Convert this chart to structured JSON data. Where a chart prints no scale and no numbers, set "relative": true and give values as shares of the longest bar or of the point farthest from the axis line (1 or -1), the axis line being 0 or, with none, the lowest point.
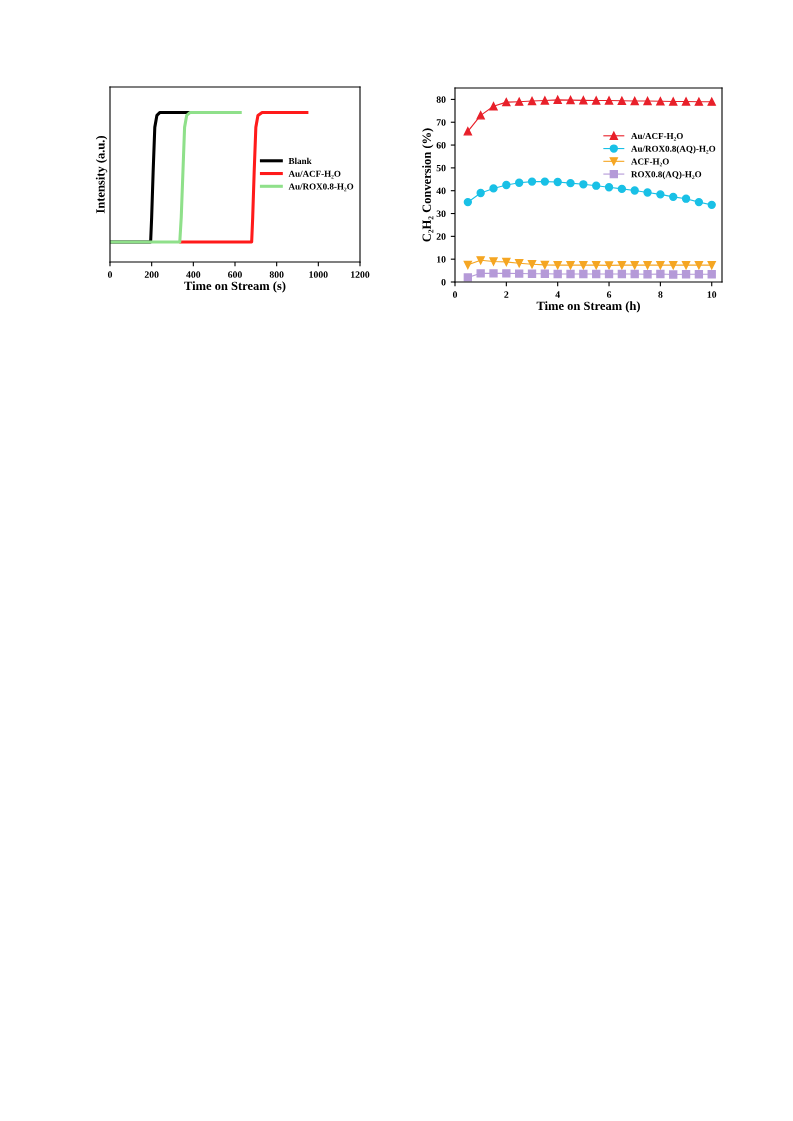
{
  "chart_data": [
    {
      "type": "line",
      "relative": true,
      "xlabel": "Time on Stream (s)",
      "ylabel": "Intensity (a.u.)",
      "xlim": [
        0,
        1200
      ],
      "xticks": [
        0,
        200,
        400,
        600,
        800,
        1000,
        1200
      ],
      "legend": "right",
      "grid": false,
      "marker": "none",
      "line_style": "solid",
      "series": [
        {
          "name": "Blank",
          "color": "#000000",
          "x": [
            0,
            195,
            200,
            207,
            215,
            225,
            240,
            390
          ],
          "values": [
            0.134,
            0.134,
            0.3,
            0.6,
            0.9,
            0.98,
            1,
            1
          ]
        },
        {
          "name": "Au/ACF-H₂O",
          "color": "#ff1a1a",
          "x": [
            340,
            680,
            685,
            692,
            700,
            710,
            730,
            945
          ],
          "values": [
            0.134,
            0.134,
            0.3,
            0.6,
            0.9,
            0.98,
            1,
            1
          ]
        },
        {
          "name": "Au/ROX0.8-H₂O",
          "color": "#8fe08a",
          "x": [
            0,
            335,
            342,
            350,
            358,
            368,
            385,
            625
          ],
          "values": [
            0.134,
            0.134,
            0.3,
            0.6,
            0.9,
            0.98,
            1,
            1
          ]
        }
      ]
    },
    {
      "type": "line",
      "xlabel": "Time on Stream (h)",
      "ylabel": "C₂H₂ Conversion (%)",
      "xlim": [
        0,
        10.4
      ],
      "xticks": [
        0,
        2,
        4,
        6,
        8,
        10
      ],
      "ylim": [
        0,
        85
      ],
      "yticks": [
        0,
        10,
        20,
        30,
        40,
        50,
        60,
        70,
        80
      ],
      "legend": "right",
      "grid": false,
      "line_style": "solid",
      "x": [
        0.5,
        1,
        1.5,
        2,
        2.5,
        3,
        3.5,
        4,
        4.5,
        5,
        5.5,
        6,
        6.5,
        7,
        7.5,
        8,
        8.5,
        9,
        9.5,
        10
      ],
      "series": [
        {
          "name": "Au/ACF-H₂O",
          "color": "#e8202a",
          "marker": "triangle",
          "values": [
            66,
            73,
            77,
            78.8,
            79,
            79.3,
            79.5,
            79.8,
            79.7,
            79.6,
            79.5,
            79.5,
            79.4,
            79.3,
            79.3,
            79.2,
            79.1,
            79.1,
            79,
            79
          ]
        },
        {
          "name": "Au/ROX0.8(AQ)-H₂O",
          "color": "#19c0e6",
          "marker": "circle",
          "values": [
            35,
            39,
            41,
            42.5,
            43.5,
            44,
            44,
            43.8,
            43.3,
            42.8,
            42.2,
            41.5,
            40.8,
            40.1,
            39.2,
            38.4,
            37.3,
            36.5,
            35,
            33.8
          ]
        },
        {
          "name": "ACF-H₂O",
          "color": "#f5a623",
          "marker": "triangle_down",
          "values": [
            7.5,
            9.5,
            9,
            8.8,
            8.2,
            7.8,
            7.5,
            7.4,
            7.4,
            7.4,
            7.4,
            7.3,
            7.4,
            7.4,
            7.4,
            7.4,
            7.4,
            7.4,
            7.4,
            7.4
          ]
        },
        {
          "name": "ROX0.8(AQ)-H₂O",
          "color": "#b59ad8",
          "marker": "square",
          "values": [
            2,
            3.8,
            3.8,
            3.8,
            3.7,
            3.6,
            3.6,
            3.5,
            3.5,
            3.5,
            3.5,
            3.5,
            3.5,
            3.5,
            3.4,
            3.5,
            3.3,
            3.4,
            3.4,
            3.4
          ]
        }
      ]
    }
  ]
}
